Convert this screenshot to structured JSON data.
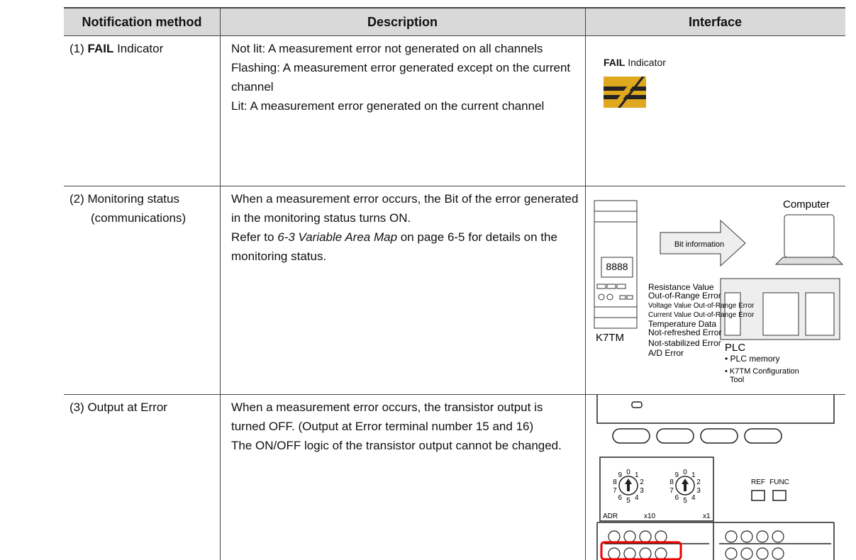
{
  "table": {
    "headers": [
      "Notification method",
      "Description",
      "Interface"
    ],
    "rows": [
      {
        "method": [
          "(1) ",
          "FAIL",
          " Indicator"
        ],
        "description": [
          "Not lit: A measurement error not generated on all channels",
          "Flashing: A measurement error generated except on the current channel",
          "Lit: A measurement error generated on the current channel"
        ],
        "interface": {
          "label": [
            "FAIL",
            " Indicator"
          ]
        }
      },
      {
        "method": [
          "(2) Monitoring status (communications)"
        ],
        "description": [
          "When a measurement error occurs, the Bit of the error generated in the monitoring status turns ON.",
          [
            "Refer to ",
            "6-3 Variable Area Map",
            " on page 6-5 for details on the monitoring status."
          ]
        ],
        "interface": {
          "computer": "Computer",
          "arrow": "Bit information",
          "display": "8888",
          "errors": [
            "Resistance Value",
            "Out-of-Range Error",
            "Voltage Value Out-of-Range Error",
            "Current Value Out-of-Range Error",
            "Temperature Data",
            "Not-refreshed Error",
            "Not-stabilized Error",
            "A/D Error"
          ],
          "device": "K7TM",
          "plc": "PLC",
          "plc_notes": [
            "• PLC memory",
            "• K7TM Configuration",
            "Tool"
          ]
        }
      },
      {
        "method": [
          "(3) Output at Error"
        ],
        "description": [
          "When a measurement error occurs, the transistor output is turned OFF. (Output at Error terminal number 15 and 16)",
          "The ON/OFF logic of the transistor output cannot be changed."
        ],
        "interface": {
          "buttons": [
            "REF",
            "FUNC"
          ],
          "dial_labels": [
            "ADR",
            "x10",
            "x1"
          ],
          "dial_digits": [
            "0",
            "1",
            "2",
            "3",
            "4",
            "5",
            "6",
            "7",
            "8",
            "9"
          ]
        }
      }
    ]
  }
}
